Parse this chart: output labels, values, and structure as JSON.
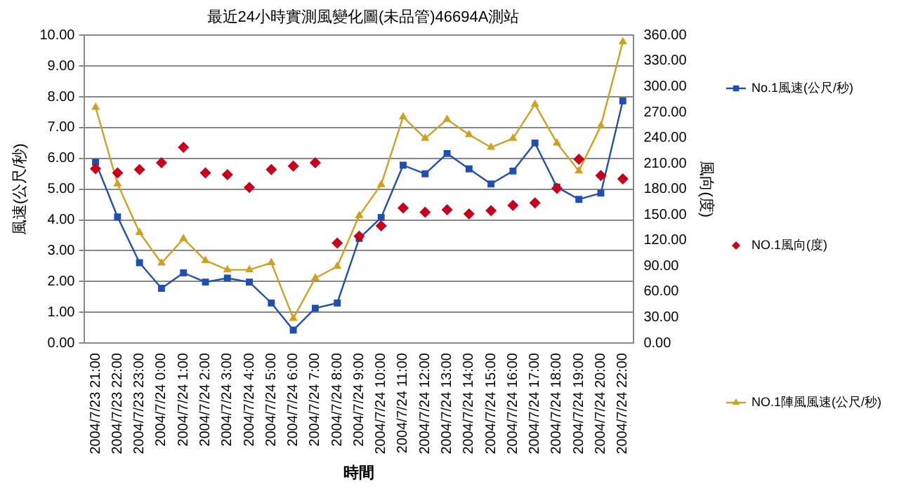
{
  "chart_data": {
    "type": "line",
    "title": "最近24小時實測風變化圖(未品管)46694A測站",
    "xlabel": "時間",
    "ylabel": "風速(公尺/秒)",
    "y2label": "風向(度)",
    "categories": [
      "2004/7/23 21:00",
      "2004/7/23 22:00",
      "2004/7/23 23:00",
      "2004/7/24 0:00",
      "2004/7/24 1:00",
      "2004/7/24 2:00",
      "2004/7/24 3:00",
      "2004/7/24 4:00",
      "2004/7/24 5:00",
      "2004/7/24 6:00",
      "2004/7/24 7:00",
      "2004/7/24 8:00",
      "2004/7/24 9:00",
      "2004/7/24 10:00",
      "2004/7/24 11:00",
      "2004/7/24 12:00",
      "2004/7/24 13:00",
      "2004/7/24 14:00",
      "2004/7/24 15:00",
      "2004/7/24 16:00",
      "2004/7/24 17:00",
      "2004/7/24 18:00",
      "2004/7/24 19:00",
      "2004/7/24 20:00",
      "2004/7/24 22:00"
    ],
    "series": [
      {
        "name": "No.1風速(公尺/秒)",
        "type": "line",
        "marker": "square",
        "color": "#1f4fb0",
        "values": [
          5.88,
          4.1,
          2.61,
          1.78,
          2.28,
          1.98,
          2.11,
          1.98,
          1.3,
          0.42,
          1.13,
          1.3,
          3.4,
          4.08,
          5.78,
          5.5,
          6.16,
          5.66,
          5.17,
          5.59,
          6.5,
          5.07,
          4.67,
          4.87,
          7.87
        ]
      },
      {
        "name": "NO.1風向(度)",
        "type": "scatter",
        "marker": "diamond",
        "axis": "y2",
        "color": "#c8001c",
        "values": [
          204,
          199,
          203,
          211,
          229,
          199,
          197,
          182,
          203,
          207,
          211,
          117,
          125,
          137,
          158,
          153,
          156,
          151,
          155,
          161,
          164,
          181,
          215,
          196,
          192
        ]
      },
      {
        "name": "NO.1陣風風速(公尺/秒)",
        "type": "line",
        "marker": "triangle",
        "color": "#d0a020",
        "values": [
          7.66,
          5.17,
          3.59,
          2.6,
          3.39,
          2.68,
          2.38,
          2.38,
          2.61,
          0.8,
          2.11,
          2.49,
          4.14,
          5.15,
          7.35,
          6.65,
          7.27,
          6.77,
          6.36,
          6.65,
          7.76,
          6.5,
          5.59,
          7.06,
          9.79
        ]
      }
    ],
    "ylim": [
      0,
      10
    ],
    "yticks": [
      {
        "value": 0,
        "label": "0.00"
      },
      {
        "value": 1,
        "label": "1.00"
      },
      {
        "value": 2,
        "label": "2.00"
      },
      {
        "value": 3,
        "label": "3.00"
      },
      {
        "value": 4,
        "label": "4.00"
      },
      {
        "value": 5,
        "label": "5.00"
      },
      {
        "value": 6,
        "label": "6.00"
      },
      {
        "value": 7,
        "label": "7.00"
      },
      {
        "value": 8,
        "label": "8.00"
      },
      {
        "value": 9,
        "label": "9.00"
      },
      {
        "value": 10,
        "label": "10.00"
      }
    ],
    "y2lim": [
      0,
      360
    ],
    "y2ticks": [
      {
        "value": 0,
        "label": "0.00"
      },
      {
        "value": 30,
        "label": "30.00"
      },
      {
        "value": 60,
        "label": "60.00"
      },
      {
        "value": 90,
        "label": "90.00"
      },
      {
        "value": 120,
        "label": "120.00"
      },
      {
        "value": 150,
        "label": "150.00"
      },
      {
        "value": 180,
        "label": "180.00"
      },
      {
        "value": 210,
        "label": "210.00"
      },
      {
        "value": 240,
        "label": "240.00"
      },
      {
        "value": 270,
        "label": "270.00"
      },
      {
        "value": 300,
        "label": "300.00"
      },
      {
        "value": 330,
        "label": "330.00"
      },
      {
        "value": 360,
        "label": "360.00"
      }
    ],
    "grid": "y",
    "legend": "right"
  }
}
